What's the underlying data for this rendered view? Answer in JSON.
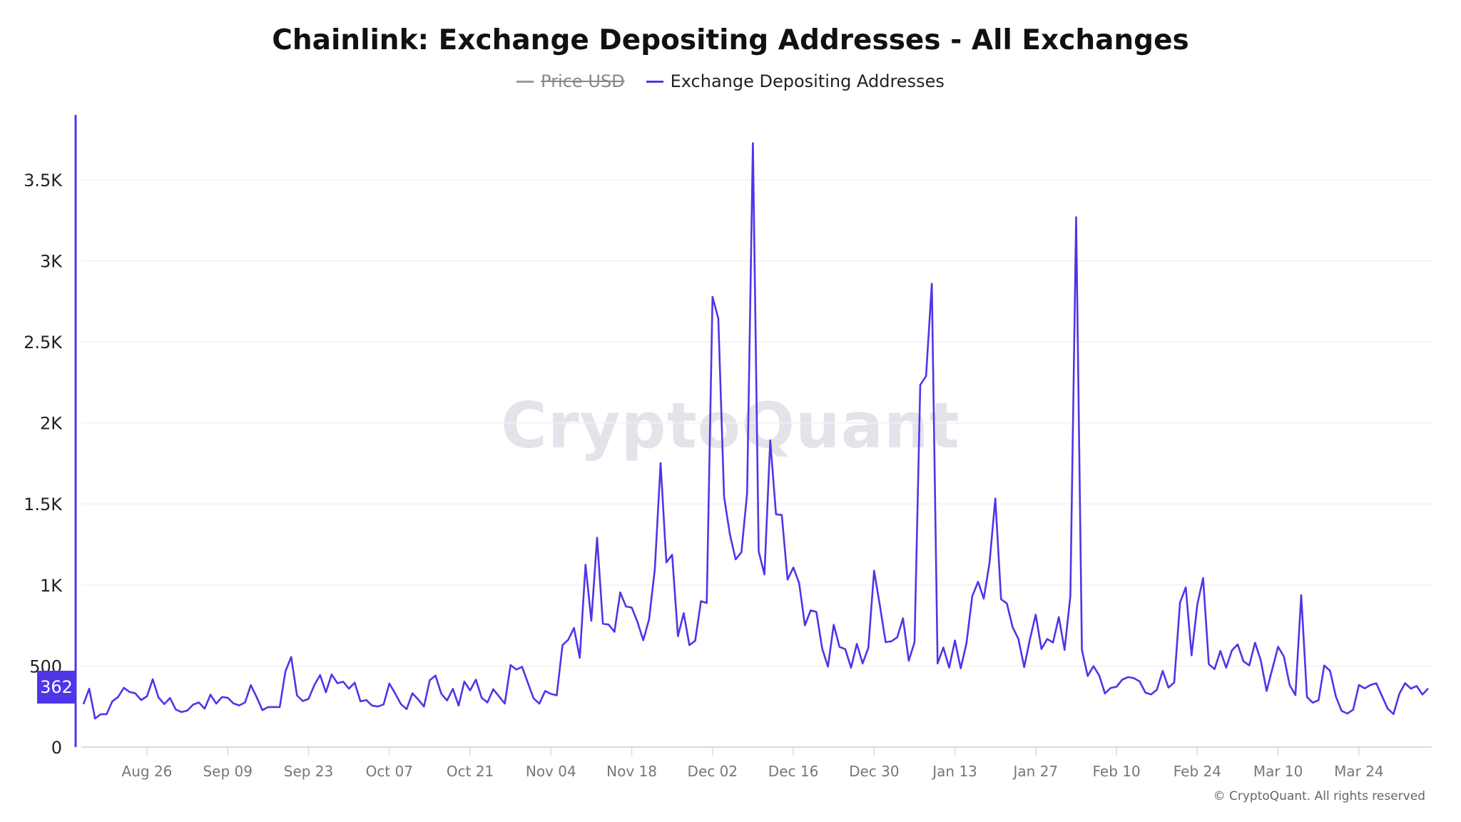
{
  "title": "Chainlink: Exchange Depositing Addresses - All Exchanges",
  "legend": [
    {
      "label": "Price USD",
      "color": "#9a9a9a",
      "hidden": true
    },
    {
      "label": "Exchange Depositing Addresses",
      "color": "#4f35e8",
      "hidden": false
    }
  ],
  "watermark": "CryptoQuant",
  "copyright": "© CryptoQuant. All rights reserved",
  "current_value_badge": "362",
  "chart_data": {
    "type": "line",
    "title": "Chainlink: Exchange Depositing Addresses - All Exchanges",
    "x_start": "Aug 15",
    "x_frequency": "daily",
    "x_ticks": [
      "Aug 26",
      "Sep 09",
      "Sep 23",
      "Oct 07",
      "Oct 21",
      "Nov 04",
      "Nov 18",
      "Dec 02",
      "Dec 16",
      "Dec 30",
      "Jan 13",
      "Jan 27",
      "Feb 10",
      "Feb 24",
      "Mar 10",
      "Mar 24"
    ],
    "y_ticks": [
      {
        "value": 0,
        "label": "0"
      },
      {
        "value": 500,
        "label": "500"
      },
      {
        "value": 1000,
        "label": "1K"
      },
      {
        "value": 1500,
        "label": "1.5K"
      },
      {
        "value": 2000,
        "label": "2K"
      },
      {
        "value": 2500,
        "label": "2.5K"
      },
      {
        "value": 3000,
        "label": "3K"
      },
      {
        "value": 3500,
        "label": "3.5K"
      }
    ],
    "ylim": [
      0,
      3900
    ],
    "grid": true,
    "legend_position": "top-center",
    "series": [
      {
        "name": "Exchange Depositing Addresses",
        "color": "#4f35e8",
        "values": [
          265,
          360,
          176,
          203,
          203,
          282,
          309,
          366,
          340,
          331,
          290,
          313,
          418,
          306,
          265,
          303,
          232,
          216,
          225,
          262,
          275,
          237,
          323,
          268,
          309,
          304,
          269,
          257,
          275,
          382,
          309,
          228,
          247,
          247,
          247,
          467,
          556,
          319,
          284,
          297,
          382,
          444,
          338,
          448,
          394,
          403,
          360,
          397,
          282,
          290,
          256,
          250,
          263,
          392,
          331,
          265,
          234,
          332,
          294,
          250,
          412,
          441,
          329,
          288,
          359,
          256,
          404,
          350,
          416,
          304,
          275,
          357,
          313,
          268,
          506,
          478,
          495,
          397,
          300,
          268,
          346,
          328,
          319,
          629,
          662,
          735,
          551,
          1125,
          779,
          1291,
          761,
          756,
          711,
          954,
          867,
          861,
          772,
          659,
          787,
          1095,
          1752,
          1139,
          1186,
          684,
          826,
          629,
          656,
          900,
          889,
          2777,
          2644,
          1544,
          1313,
          1158,
          1202,
          1567,
          3726,
          1207,
          1065,
          1892,
          1436,
          1432,
          1033,
          1108,
          1012,
          751,
          843,
          834,
          608,
          496,
          755,
          618,
          604,
          490,
          637,
          516,
          612,
          1088,
          873,
          647,
          653,
          677,
          794,
          533,
          647,
          2235,
          2288,
          2859,
          516,
          614,
          490,
          657,
          486,
          641,
          931,
          1020,
          916,
          1137,
          1533,
          912,
          886,
          739,
          667,
          493,
          667,
          817,
          605,
          667,
          645,
          802,
          600,
          931,
          3269,
          600,
          439,
          499,
          443,
          331,
          365,
          372,
          416,
          432,
          425,
          405,
          336,
          325,
          354,
          470,
          367,
          399,
          891,
          985,
          566,
          880,
          1043,
          511,
          481,
          593,
          490,
          597,
          633,
          529,
          504,
          644,
          534,
          346,
          482,
          619,
          559,
          383,
          321,
          937,
          309,
          274,
          289,
          503,
          471,
          314,
          223,
          207,
          230,
          383,
          362,
          383,
          394,
          314,
          237,
          204,
          328,
          394,
          361,
          377,
          324,
          362
        ]
      }
    ]
  }
}
